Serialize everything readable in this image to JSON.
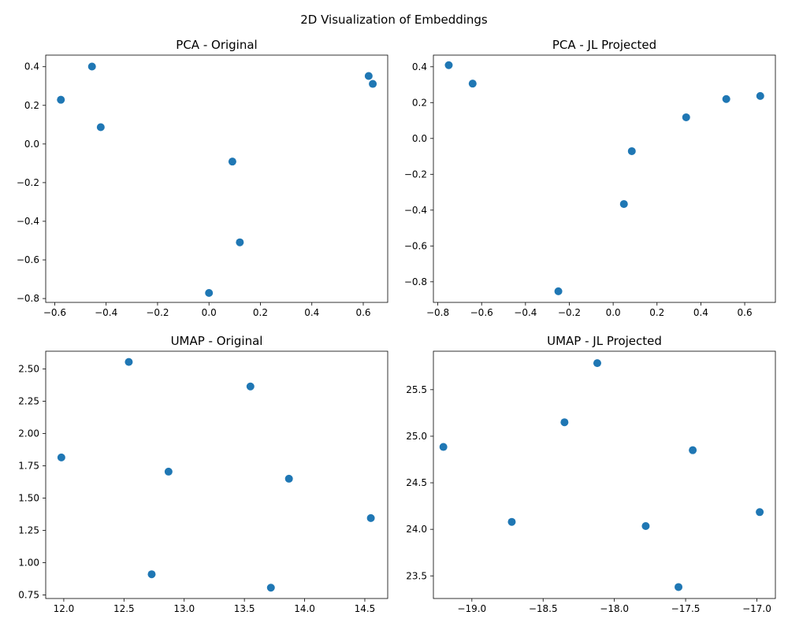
{
  "figure": {
    "suptitle": "2D Visualization of Embeddings",
    "marker_color": "#1f77b4"
  },
  "chart_data": [
    {
      "type": "scatter",
      "title": "PCA - Original",
      "xlabel": "",
      "ylabel": "",
      "xlim": [
        -0.635,
        0.695
      ],
      "ylim": [
        -0.82,
        0.46
      ],
      "xticks": [
        -0.6,
        -0.4,
        -0.2,
        0.0,
        0.2,
        0.4,
        0.6
      ],
      "xtick_labels": [
        "−0.6",
        "−0.4",
        "−0.2",
        "0.0",
        "0.2",
        "0.4",
        "0.6"
      ],
      "yticks": [
        -0.8,
        -0.6,
        -0.4,
        -0.2,
        0.0,
        0.2,
        0.4
      ],
      "ytick_labels": [
        "−0.8",
        "−0.6",
        "−0.4",
        "−0.2",
        "0.0",
        "0.2",
        "0.4"
      ],
      "grid": false,
      "points": [
        {
          "x": -0.576,
          "y": 0.229
        },
        {
          "x": -0.455,
          "y": 0.401
        },
        {
          "x": -0.421,
          "y": 0.087
        },
        {
          "x": 0.091,
          "y": -0.091
        },
        {
          "x": 0.12,
          "y": -0.509
        },
        {
          "x": 0.0,
          "y": -0.771
        },
        {
          "x": 0.621,
          "y": 0.352
        },
        {
          "x": 0.637,
          "y": 0.311
        }
      ]
    },
    {
      "type": "scatter",
      "title": "PCA - JL Projected",
      "xlabel": "",
      "ylabel": "",
      "xlim": [
        -0.82,
        0.74
      ],
      "ylim": [
        -0.915,
        0.465
      ],
      "xticks": [
        -0.8,
        -0.6,
        -0.4,
        -0.2,
        0.0,
        0.2,
        0.4,
        0.6
      ],
      "xtick_labels": [
        "−0.8",
        "−0.6",
        "−0.4",
        "−0.2",
        "0.0",
        "0.2",
        "0.4",
        "0.6"
      ],
      "yticks": [
        -0.8,
        -0.6,
        -0.4,
        -0.2,
        0.0,
        0.2,
        0.4
      ],
      "ytick_labels": [
        "−0.8",
        "−0.6",
        "−0.4",
        "−0.2",
        "0.0",
        "0.2",
        "0.4"
      ],
      "grid": false,
      "points": [
        {
          "x": -0.75,
          "y": 0.409
        },
        {
          "x": -0.641,
          "y": 0.306
        },
        {
          "x": -0.25,
          "y": -0.853
        },
        {
          "x": 0.049,
          "y": -0.366
        },
        {
          "x": 0.085,
          "y": -0.071
        },
        {
          "x": 0.333,
          "y": 0.118
        },
        {
          "x": 0.516,
          "y": 0.22
        },
        {
          "x": 0.671,
          "y": 0.237
        }
      ]
    },
    {
      "type": "scatter",
      "title": "UMAP - Original",
      "xlabel": "",
      "ylabel": "",
      "xlim": [
        11.85,
        14.69
      ],
      "ylim": [
        0.722,
        2.638
      ],
      "xticks": [
        12.0,
        12.5,
        13.0,
        13.5,
        14.0,
        14.5
      ],
      "xtick_labels": [
        "12.0",
        "12.5",
        "13.0",
        "13.5",
        "14.0",
        "14.5"
      ],
      "yticks": [
        0.75,
        1.0,
        1.25,
        1.5,
        1.75,
        2.0,
        2.25,
        2.5
      ],
      "ytick_labels": [
        "0.75",
        "1.00",
        "1.25",
        "1.50",
        "1.75",
        "2.00",
        "2.25",
        "2.50"
      ],
      "grid": false,
      "points": [
        {
          "x": 11.98,
          "y": 1.815
        },
        {
          "x": 12.54,
          "y": 2.555
        },
        {
          "x": 12.73,
          "y": 0.91
        },
        {
          "x": 12.87,
          "y": 1.705
        },
        {
          "x": 13.55,
          "y": 2.365
        },
        {
          "x": 13.72,
          "y": 0.806
        },
        {
          "x": 13.87,
          "y": 1.65
        },
        {
          "x": 14.55,
          "y": 1.345
        }
      ]
    },
    {
      "type": "scatter",
      "title": "UMAP - JL Projected",
      "xlabel": "",
      "ylabel": "",
      "xlim": [
        -19.27,
        -16.87
      ],
      "ylim": [
        23.257,
        25.913
      ],
      "xticks": [
        -19.0,
        -18.5,
        -18.0,
        -17.5,
        -17.0
      ],
      "xtick_labels": [
        "−19.0",
        "−18.5",
        "−18.0",
        "−17.5",
        "−17.0"
      ],
      "yticks": [
        23.5,
        24.0,
        24.5,
        25.0,
        25.5
      ],
      "ytick_labels": [
        "23.5",
        "24.0",
        "24.5",
        "25.0",
        "25.5"
      ],
      "grid": false,
      "points": [
        {
          "x": -19.2,
          "y": 24.885
        },
        {
          "x": -18.72,
          "y": 24.08
        },
        {
          "x": -18.35,
          "y": 25.15
        },
        {
          "x": -18.12,
          "y": 25.785
        },
        {
          "x": -17.78,
          "y": 24.035
        },
        {
          "x": -17.55,
          "y": 23.38
        },
        {
          "x": -17.45,
          "y": 24.85
        },
        {
          "x": -16.98,
          "y": 24.185
        }
      ]
    }
  ]
}
